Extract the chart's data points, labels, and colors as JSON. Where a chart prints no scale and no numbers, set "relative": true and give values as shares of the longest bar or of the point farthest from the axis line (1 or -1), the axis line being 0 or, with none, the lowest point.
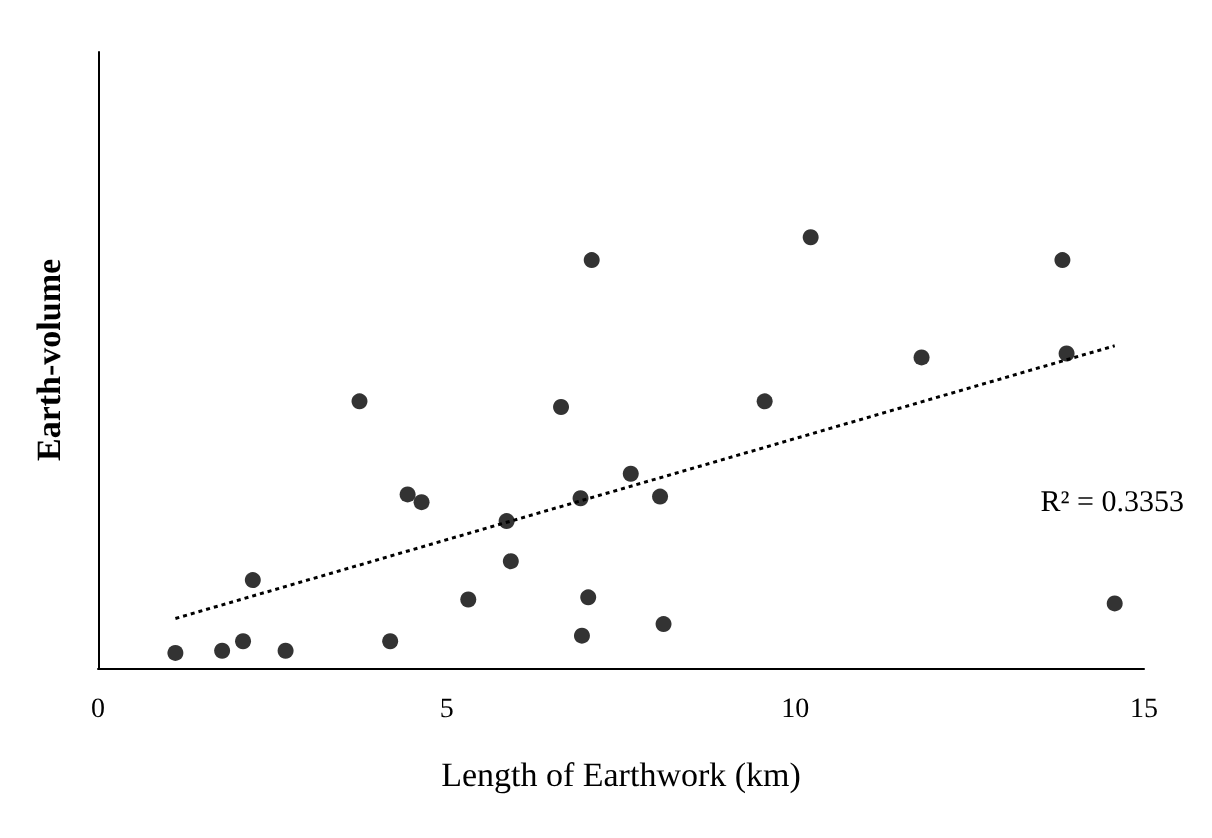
{
  "chart_data": {
    "type": "scatter",
    "xlabel": "Length of Earthwork (km)",
    "ylabel": "Earth-volume",
    "relative": true,
    "xlim": [
      0,
      15
    ],
    "xticks": [
      0,
      5,
      10,
      15
    ],
    "grid": false,
    "marker": "circle",
    "series": [
      {
        "color": "#000000",
        "x": [
          1.11,
          1.78,
          2.08,
          2.22,
          2.69,
          3.75,
          4.19,
          4.44,
          4.64,
          5.31,
          5.86,
          5.92,
          6.64,
          6.92,
          6.94,
          7.03,
          7.08,
          7.64,
          8.06,
          8.11,
          9.56,
          10.22,
          11.81,
          13.83,
          13.89,
          14.58
        ],
        "values": [
          0.035,
          0.04,
          0.062,
          0.204,
          0.04,
          0.619,
          0.062,
          0.403,
          0.385,
          0.159,
          0.341,
          0.248,
          0.606,
          0.394,
          0.075,
          0.164,
          0.947,
          0.451,
          0.398,
          0.102,
          0.619,
          1.0,
          0.721,
          0.947,
          0.73,
          0.15
        ]
      },
      {
        "type": "line",
        "color": "#000000",
        "line_style": "dotted",
        "marker": "none",
        "x": [
          1.11,
          14.58
        ],
        "values": [
          0.115,
          0.748
        ]
      }
    ],
    "annotations": [
      "R² = 0.3353"
    ]
  }
}
